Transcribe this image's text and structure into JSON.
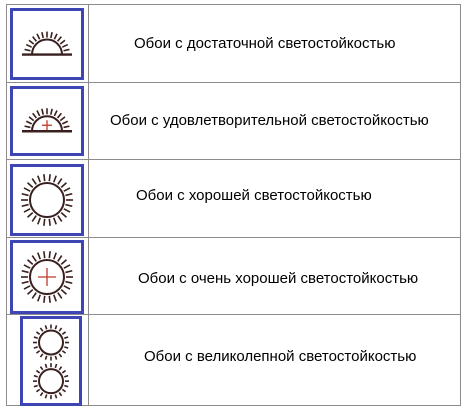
{
  "rows": [
    {
      "label": "Обои с достаточной светостойкостью",
      "icon": "half-sun-icon"
    },
    {
      "label": "Обои с удовлетворительной светостойкостью",
      "icon": "half-sun-cross-icon"
    },
    {
      "label": "Обои с хорошей светостойкостью",
      "icon": "full-sun-icon"
    },
    {
      "label": "Обои с очень хорошей светостойкостью",
      "icon": "full-sun-cross-icon"
    },
    {
      "label": "Обои с великолепной светостойкостью",
      "icon": "double-sun-icon"
    }
  ],
  "colors": {
    "border": "#3d46b4",
    "symbol": "#3a1f1f",
    "cross": "#c0392b",
    "grid": "#8c8c8c"
  }
}
